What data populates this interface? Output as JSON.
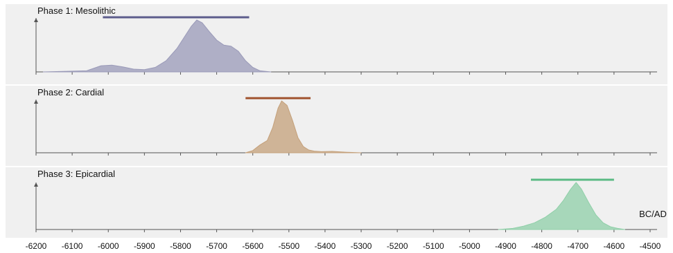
{
  "chart_data": {
    "type": "area",
    "x_unit_label": "BC/AD",
    "x_ticks": [
      -6200,
      -6100,
      -6000,
      -5900,
      -5800,
      -5700,
      -5600,
      -5500,
      -5400,
      -5300,
      -5200,
      -5100,
      -5000,
      -4900,
      -4800,
      -4700,
      -4600,
      -4500
    ],
    "xlim": [
      -6200,
      -4500
    ],
    "grid": false,
    "series": [
      {
        "name": "Phase 1: Mesolithic",
        "color": "#9a9ab8",
        "range_color": "#5c5c8c",
        "range": [
          -6015,
          -5610
        ],
        "x": [
          -6180,
          -6060,
          -6020,
          -5990,
          -5960,
          -5930,
          -5900,
          -5870,
          -5840,
          -5810,
          -5790,
          -5770,
          -5755,
          -5740,
          -5720,
          -5700,
          -5680,
          -5660,
          -5640,
          -5620,
          -5600,
          -5580,
          -5550
        ],
        "y": [
          0,
          0.02,
          0.11,
          0.12,
          0.09,
          0.05,
          0.04,
          0.08,
          0.2,
          0.42,
          0.62,
          0.82,
          0.93,
          0.88,
          0.72,
          0.57,
          0.48,
          0.46,
          0.37,
          0.2,
          0.08,
          0.02,
          0
        ]
      },
      {
        "name": "Phase 2: Cardial",
        "color": "#c4a07a",
        "range_color": "#a0522d",
        "range": [
          -5620,
          -5440
        ],
        "x": [
          -5620,
          -5600,
          -5580,
          -5560,
          -5545,
          -5530,
          -5520,
          -5505,
          -5490,
          -5475,
          -5460,
          -5445,
          -5430,
          -5410,
          -5380,
          -5340,
          -5300
        ],
        "y": [
          0,
          0.04,
          0.14,
          0.22,
          0.45,
          0.8,
          0.93,
          0.85,
          0.58,
          0.27,
          0.11,
          0.05,
          0.03,
          0.02,
          0.025,
          0.01,
          0
        ]
      },
      {
        "name": "Phase 3: Epicardial",
        "color": "#8fcfa8",
        "range_color": "#5aba84",
        "range": [
          -4830,
          -4600
        ],
        "x": [
          -4920,
          -4880,
          -4850,
          -4820,
          -4790,
          -4760,
          -4740,
          -4720,
          -4705,
          -4690,
          -4670,
          -4650,
          -4630,
          -4610,
          -4590,
          -4570
        ],
        "y": [
          0,
          0.02,
          0.06,
          0.12,
          0.22,
          0.36,
          0.52,
          0.72,
          0.84,
          0.72,
          0.48,
          0.26,
          0.12,
          0.05,
          0.02,
          0
        ]
      }
    ]
  }
}
